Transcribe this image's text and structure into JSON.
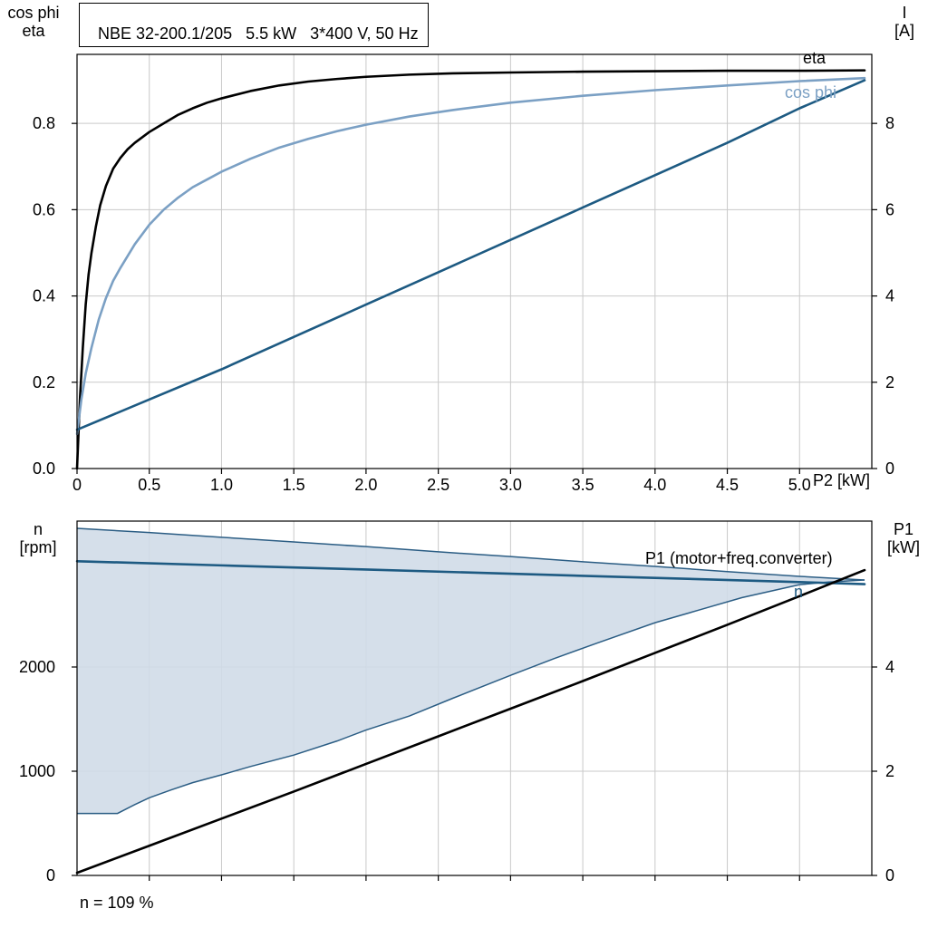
{
  "page": {
    "background": "#ffffff"
  },
  "chart_data": [
    {
      "id": "motor-electrical-curves",
      "type": "line",
      "title": "NBE 32-200.1/205   5.5 kW   3*400 V, 50 Hz",
      "x_axis": {
        "label": "P2 [kW]",
        "min": 0,
        "max": 5.5,
        "ticks": [
          0,
          0.5,
          1,
          1.5,
          2,
          2.5,
          3,
          3.5,
          4,
          4.5,
          5
        ],
        "tick_labels": [
          "0",
          "0.5",
          "1.0",
          "1.5",
          "2.0",
          "2.5",
          "3.0",
          "3.5",
          "4.0",
          "4.5",
          "5.0"
        ]
      },
      "y_left": {
        "label_lines": [
          "cos phi",
          "eta"
        ],
        "min": 0,
        "max": 0.96,
        "ticks": [
          0,
          0.2,
          0.4,
          0.6,
          0.8
        ],
        "tick_labels": [
          "0.0",
          "0.2",
          "0.4",
          "0.6",
          "0.8"
        ]
      },
      "y_right": {
        "label_lines": [
          "I",
          "[A]"
        ],
        "min": 0,
        "max": 9.6,
        "ticks": [
          0,
          2,
          4,
          6,
          8
        ],
        "tick_labels": [
          "0",
          "2",
          "4",
          "6",
          "8"
        ]
      },
      "grid": true,
      "legend_position": "labels-at-curve-end",
      "series": [
        {
          "name": "eta",
          "axis": "left",
          "color": "#000000",
          "width": 2.6,
          "curve_label": "eta",
          "points": [
            [
              0,
              0
            ],
            [
              0.02,
              0.16
            ],
            [
              0.04,
              0.28
            ],
            [
              0.06,
              0.38
            ],
            [
              0.08,
              0.45
            ],
            [
              0.1,
              0.5
            ],
            [
              0.13,
              0.56
            ],
            [
              0.16,
              0.61
            ],
            [
              0.2,
              0.655
            ],
            [
              0.25,
              0.695
            ],
            [
              0.3,
              0.72
            ],
            [
              0.35,
              0.74
            ],
            [
              0.4,
              0.755
            ],
            [
              0.5,
              0.78
            ],
            [
              0.6,
              0.8
            ],
            [
              0.7,
              0.82
            ],
            [
              0.8,
              0.835
            ],
            [
              0.9,
              0.848
            ],
            [
              1.0,
              0.858
            ],
            [
              1.2,
              0.875
            ],
            [
              1.4,
              0.888
            ],
            [
              1.6,
              0.897
            ],
            [
              1.8,
              0.903
            ],
            [
              2.0,
              0.908
            ],
            [
              2.3,
              0.913
            ],
            [
              2.6,
              0.916
            ],
            [
              3.0,
              0.918
            ],
            [
              3.5,
              0.92
            ],
            [
              4.0,
              0.921
            ],
            [
              4.5,
              0.922
            ],
            [
              5.0,
              0.922
            ],
            [
              5.45,
              0.923
            ]
          ]
        },
        {
          "name": "cos phi",
          "axis": "left",
          "color": "#7ba0c4",
          "width": 2.6,
          "curve_label": "cos phi",
          "points": [
            [
              0,
              0.08
            ],
            [
              0.03,
              0.16
            ],
            [
              0.06,
              0.22
            ],
            [
              0.1,
              0.28
            ],
            [
              0.15,
              0.345
            ],
            [
              0.2,
              0.395
            ],
            [
              0.25,
              0.435
            ],
            [
              0.3,
              0.465
            ],
            [
              0.4,
              0.52
            ],
            [
              0.5,
              0.565
            ],
            [
              0.6,
              0.6
            ],
            [
              0.7,
              0.628
            ],
            [
              0.8,
              0.652
            ],
            [
              0.9,
              0.67
            ],
            [
              1.0,
              0.688
            ],
            [
              1.2,
              0.718
            ],
            [
              1.4,
              0.744
            ],
            [
              1.6,
              0.764
            ],
            [
              1.8,
              0.782
            ],
            [
              2.0,
              0.797
            ],
            [
              2.3,
              0.816
            ],
            [
              2.6,
              0.831
            ],
            [
              3.0,
              0.848
            ],
            [
              3.5,
              0.864
            ],
            [
              4.0,
              0.877
            ],
            [
              4.5,
              0.888
            ],
            [
              5.0,
              0.898
            ],
            [
              5.45,
              0.905
            ]
          ]
        },
        {
          "name": "I",
          "axis": "right",
          "color": "#1d5a82",
          "width": 2.6,
          "curve_label": "I",
          "points": [
            [
              0,
              0.9
            ],
            [
              0.5,
              1.6
            ],
            [
              1.0,
              2.3
            ],
            [
              1.5,
              3.05
            ],
            [
              2.0,
              3.8
            ],
            [
              2.5,
              4.55
            ],
            [
              3.0,
              5.3
            ],
            [
              3.5,
              6.05
            ],
            [
              4.0,
              6.8
            ],
            [
              4.5,
              7.55
            ],
            [
              5.0,
              8.35
            ],
            [
              5.45,
              9.0
            ]
          ]
        }
      ]
    },
    {
      "id": "speed-power-curves",
      "type": "line+area",
      "title": "",
      "x_axis": {
        "label": "",
        "min": 0,
        "max": 5.5,
        "ticks": [
          0.5,
          1,
          1.5,
          2,
          2.5,
          3,
          3.5,
          4,
          4.5,
          5
        ],
        "tick_labels": []
      },
      "y_left": {
        "label_lines": [
          "n",
          "[rpm]"
        ],
        "min": 0,
        "max": 3400,
        "ticks": [
          0,
          1000,
          2000
        ],
        "tick_labels": [
          "0",
          "1000",
          "2000"
        ]
      },
      "y_right": {
        "label_lines": [
          "P1",
          "[kW]"
        ],
        "min": 0,
        "max": 6.8,
        "ticks": [
          0,
          2,
          4
        ],
        "tick_labels": [
          "0",
          "2",
          "4"
        ]
      },
      "grid": true,
      "band": {
        "name": "speed-operating-range",
        "fill": "#cfdbe7",
        "stroke": "#2b5d84",
        "upper": [
          [
            0,
            3330
          ],
          [
            0.5,
            3290
          ],
          [
            1.0,
            3245
          ],
          [
            1.5,
            3200
          ],
          [
            2.0,
            3155
          ],
          [
            2.5,
            3105
          ],
          [
            3.0,
            3060
          ],
          [
            3.5,
            3010
          ],
          [
            4.0,
            2965
          ],
          [
            4.5,
            2915
          ],
          [
            5.0,
            2870
          ],
          [
            5.45,
            2835
          ]
        ],
        "lower": [
          [
            0,
            595
          ],
          [
            0.28,
            595
          ],
          [
            0.4,
            680
          ],
          [
            0.5,
            745
          ],
          [
            0.65,
            820
          ],
          [
            0.8,
            890
          ],
          [
            1.0,
            965
          ],
          [
            1.2,
            1045
          ],
          [
            1.5,
            1155
          ],
          [
            1.8,
            1290
          ],
          [
            2.0,
            1395
          ],
          [
            2.3,
            1530
          ],
          [
            2.6,
            1700
          ],
          [
            3.0,
            1920
          ],
          [
            3.3,
            2080
          ],
          [
            3.6,
            2230
          ],
          [
            4.0,
            2425
          ],
          [
            4.3,
            2545
          ],
          [
            4.6,
            2665
          ],
          [
            5.0,
            2790
          ],
          [
            5.2,
            2815
          ],
          [
            5.45,
            2835
          ]
        ]
      },
      "series": [
        {
          "name": "n",
          "axis": "left",
          "color": "#1d5a82",
          "width": 2.6,
          "curve_label": "n",
          "points": [
            [
              0,
              3015
            ],
            [
              1,
              2975
            ],
            [
              2,
              2935
            ],
            [
              3,
              2895
            ],
            [
              4,
              2855
            ],
            [
              5,
              2815
            ],
            [
              5.45,
              2795
            ]
          ]
        },
        {
          "name": "P1",
          "axis": "right",
          "color": "#000000",
          "width": 2.6,
          "curve_label": "P1 (motor+freq.converter)",
          "points": [
            [
              0,
              0.05
            ],
            [
              0.5,
              0.57
            ],
            [
              1.0,
              1.09
            ],
            [
              1.5,
              1.61
            ],
            [
              2.0,
              2.14
            ],
            [
              2.5,
              2.67
            ],
            [
              3.0,
              3.2
            ],
            [
              3.5,
              3.73
            ],
            [
              4.0,
              4.27
            ],
            [
              4.5,
              4.81
            ],
            [
              5.0,
              5.36
            ],
            [
              5.45,
              5.86
            ]
          ]
        }
      ],
      "footnote": "n = 109 %"
    }
  ]
}
